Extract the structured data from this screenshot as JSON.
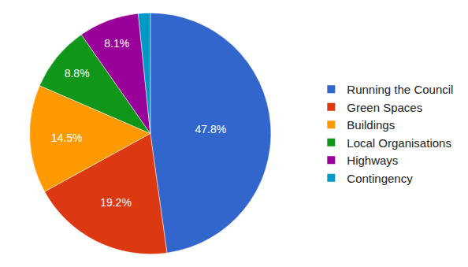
{
  "chart_data": {
    "type": "pie",
    "categories": [
      "Running the Council",
      "Green Spaces",
      "Buildings",
      "Local Organisations",
      "Highways",
      "Contingency"
    ],
    "values": [
      47.8,
      19.2,
      14.5,
      8.8,
      8.1,
      1.6
    ],
    "value_labels": [
      "47.8%",
      "19.2%",
      "14.5%",
      "8.8%",
      "8.1%",
      null
    ],
    "colors": [
      "#3366cc",
      "#dc3912",
      "#ff9900",
      "#109618",
      "#990099",
      "#0099c6"
    ],
    "data_labels": true,
    "legend": "right"
  }
}
